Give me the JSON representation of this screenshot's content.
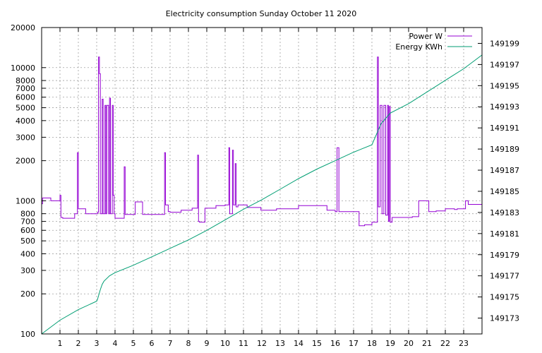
{
  "chart_data": {
    "type": "line",
    "title": "Electricity consumption Sunday October 11 2020",
    "xlabel": "",
    "ylabel": "",
    "y2label": "",
    "xlim": [
      0,
      24
    ],
    "ylim": [
      100,
      20000
    ],
    "y_scale": "log",
    "y2lim": [
      149171.5,
      149200.5
    ],
    "grid": true,
    "legend_position": "top-right",
    "x_ticks": [
      1,
      2,
      3,
      4,
      5,
      6,
      7,
      8,
      9,
      10,
      11,
      12,
      13,
      14,
      15,
      16,
      17,
      18,
      19,
      20,
      21,
      22,
      23
    ],
    "y_ticks": [
      100,
      200,
      300,
      400,
      500,
      600,
      700,
      800,
      1000,
      2000,
      3000,
      4000,
      5000,
      6000,
      7000,
      8000,
      10000,
      20000
    ],
    "y2_ticks": [
      149173,
      149175,
      149177,
      149179,
      149181,
      149183,
      149185,
      149187,
      149189,
      149191,
      149193,
      149195,
      149197,
      149199
    ],
    "series": [
      {
        "name": "Power W",
        "axis": "y",
        "color": "#9400d3",
        "step": true,
        "x": [
          0,
          0.05,
          0.5,
          1.0,
          1.05,
          1.15,
          1.8,
          1.95,
          2.0,
          2.05,
          2.4,
          3.05,
          3.1,
          3.15,
          3.2,
          3.3,
          3.35,
          3.45,
          3.5,
          3.55,
          3.65,
          3.7,
          3.75,
          3.85,
          3.9,
          3.95,
          4.0,
          4.5,
          4.55,
          4.6,
          5.1,
          5.5,
          5.55,
          6.4,
          6.7,
          6.75,
          6.9,
          7.0,
          7.6,
          8.2,
          8.5,
          8.55,
          8.6,
          8.9,
          9.0,
          9.5,
          10.0,
          10.2,
          10.25,
          10.4,
          10.45,
          10.55,
          10.6,
          10.7,
          10.75,
          11.2,
          11.3,
          11.8,
          11.95,
          12.4,
          12.8,
          13.3,
          13.95,
          14.0,
          15.0,
          15.55,
          16.0,
          16.1,
          16.2,
          16.3,
          16.8,
          17.3,
          17.6,
          18.0,
          18.1,
          18.3,
          18.35,
          18.45,
          18.55,
          18.65,
          18.75,
          18.85,
          18.9,
          18.95,
          19.0,
          19.1,
          19.7,
          20.2,
          20.5,
          20.55,
          21.1,
          21.5,
          22.0,
          22.5,
          22.65,
          23.1,
          23.15,
          23.25,
          23.9
        ],
        "values": [
          950,
          1050,
          1000,
          1100,
          750,
          740,
          800,
          2300,
          870,
          870,
          800,
          820,
          12000,
          9000,
          800,
          5800,
          800,
          5200,
          800,
          5200,
          800,
          5900,
          800,
          5200,
          1100,
          800,
          740,
          1800,
          790,
          790,
          980,
          790,
          790,
          790,
          2300,
          930,
          830,
          820,
          850,
          880,
          2200,
          700,
          690,
          880,
          880,
          920,
          930,
          2500,
          800,
          2400,
          930,
          1900,
          900,
          930,
          930,
          890,
          890,
          890,
          850,
          850,
          870,
          870,
          870,
          920,
          920,
          850,
          830,
          2500,
          830,
          830,
          830,
          650,
          660,
          690,
          690,
          12000,
          900,
          5200,
          800,
          5200,
          780,
          5200,
          700,
          5100,
          690,
          750,
          750,
          760,
          760,
          1000,
          830,
          840,
          870,
          860,
          870,
          1000,
          1000,
          940,
          940
        ]
      },
      {
        "name": "Energy KWh",
        "axis": "y2",
        "color": "#009e73",
        "step": false,
        "x": [
          0,
          1.0,
          2.0,
          3.0,
          3.05,
          3.2,
          3.3,
          3.4,
          3.7,
          4.0,
          5.0,
          6.0,
          7.0,
          8.0,
          9.0,
          10.0,
          11.0,
          12.0,
          13.0,
          14.0,
          15.0,
          16.0,
          17.0,
          18.0,
          18.5,
          19.0,
          20.0,
          21.0,
          22.0,
          23.0,
          24.0
        ],
        "values": [
          149171.5,
          149172.8,
          149173.8,
          149174.6,
          149174.8,
          149175.7,
          149176.2,
          149176.5,
          149177.0,
          149177.3,
          149178.0,
          149178.8,
          149179.6,
          149180.4,
          149181.3,
          149182.3,
          149183.3,
          149184.2,
          149185.2,
          149186.2,
          149187.1,
          149187.9,
          149188.7,
          149189.4,
          149191.4,
          149192.4,
          149193.3,
          149194.4,
          149195.5,
          149196.6,
          149197.9
        ]
      }
    ]
  }
}
